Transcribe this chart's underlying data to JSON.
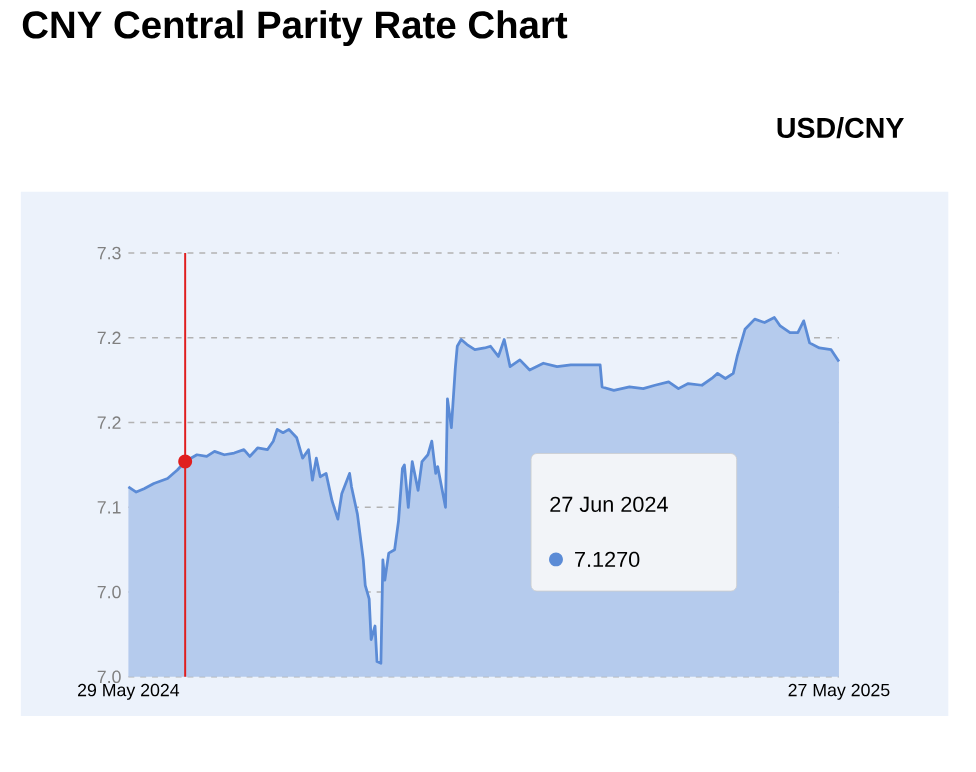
{
  "chart_data": {
    "type": "area",
    "title": "CNY Central Parity Rate Chart",
    "subtitle": "USD/CNY",
    "x": [
      "2024-05-29",
      "2024-06-02",
      "2024-06-06",
      "2024-06-11",
      "2024-06-18",
      "2024-06-23",
      "2024-06-27",
      "2024-07-03",
      "2024-07-08",
      "2024-07-12",
      "2024-07-17",
      "2024-07-22",
      "2024-07-27",
      "2024-07-30",
      "2024-08-03",
      "2024-08-08",
      "2024-08-11",
      "2024-08-13",
      "2024-08-16",
      "2024-08-19",
      "2024-08-23",
      "2024-08-26",
      "2024-08-29",
      "2024-08-31",
      "2024-09-02",
      "2024-09-04",
      "2024-09-07",
      "2024-09-10",
      "2024-09-13",
      "2024-09-15",
      "2024-09-19",
      "2024-09-20",
      "2024-09-23",
      "2024-09-26",
      "2024-09-27",
      "2024-09-29",
      "2024-09-30",
      "2024-10-02",
      "2024-10-03",
      "2024-10-05",
      "2024-10-06",
      "2024-10-07",
      "2024-10-09",
      "2024-10-12",
      "2024-10-14",
      "2024-10-16",
      "2024-10-17",
      "2024-10-19",
      "2024-10-21",
      "2024-10-24",
      "2024-10-26",
      "2024-10-29",
      "2024-10-31",
      "2024-11-02",
      "2024-11-03",
      "2024-11-07",
      "2024-11-08",
      "2024-11-10",
      "2024-11-12",
      "2024-11-13",
      "2024-11-15",
      "2024-11-18",
      "2024-11-22",
      "2024-11-27",
      "2024-11-30",
      "2024-12-04",
      "2024-12-07",
      "2024-12-10",
      "2024-12-15",
      "2024-12-20",
      "2024-12-27",
      "2025-01-03",
      "2025-01-10",
      "2025-01-16",
      "2025-01-25",
      "2025-01-26",
      "2025-02-01",
      "2025-02-09",
      "2025-02-16",
      "2025-02-22",
      "2025-03-01",
      "2025-03-06",
      "2025-03-11",
      "2025-03-18",
      "2025-03-23",
      "2025-03-26",
      "2025-03-30",
      "2025-04-03",
      "2025-04-05",
      "2025-04-09",
      "2025-04-14",
      "2025-04-19",
      "2025-04-24",
      "2025-04-27",
      "2025-05-02",
      "2025-05-06",
      "2025-05-09",
      "2025-05-12",
      "2025-05-17",
      "2025-05-23",
      "2025-05-27"
    ],
    "series": [
      {
        "color": "#5b8bd6",
        "values": [
          7.112,
          7.109,
          7.111,
          7.114,
          7.117,
          7.122,
          7.127,
          7.131,
          7.13,
          7.133,
          7.131,
          7.132,
          7.134,
          7.13,
          7.135,
          7.134,
          7.139,
          7.146,
          7.144,
          7.146,
          7.141,
          7.129,
          7.134,
          7.116,
          7.129,
          7.118,
          7.12,
          7.104,
          7.093,
          7.108,
          7.12,
          7.112,
          7.096,
          7.069,
          7.054,
          7.046,
          7.022,
          7.03,
          7.009,
          7.008,
          7.069,
          7.057,
          7.073,
          7.075,
          7.092,
          7.123,
          7.125,
          7.1,
          7.127,
          7.11,
          7.127,
          7.131,
          7.139,
          7.12,
          7.124,
          7.1,
          7.164,
          7.147,
          7.182,
          7.195,
          7.199,
          7.196,
          7.193,
          7.194,
          7.195,
          7.189,
          7.199,
          7.183,
          7.187,
          7.181,
          7.185,
          7.183,
          7.184,
          7.184,
          7.184,
          7.171,
          7.169,
          7.171,
          7.17,
          7.172,
          7.174,
          7.17,
          7.173,
          7.172,
          7.176,
          7.179,
          7.176,
          7.179,
          7.189,
          7.205,
          7.211,
          7.209,
          7.212,
          7.207,
          7.203,
          7.203,
          7.21,
          7.197,
          7.194,
          7.193,
          7.186
        ]
      }
    ],
    "xlim": [
      "2024-05-29",
      "2025-05-27"
    ],
    "xticks": [
      {
        "value": "2024-05-29",
        "label": "29 May 2024"
      },
      {
        "value": "2025-05-27",
        "label": "27 May 2025"
      }
    ],
    "ylim": [
      7.0,
      7.25
    ],
    "yticks": [
      {
        "value": 7.0,
        "label": "7.0"
      },
      {
        "value": 7.05,
        "label": "7.0"
      },
      {
        "value": 7.1,
        "label": "7.1"
      },
      {
        "value": 7.15,
        "label": "7.2"
      },
      {
        "value": 7.2,
        "label": "7.2"
      },
      {
        "value": 7.25,
        "label": "7.3"
      }
    ],
    "grid": "y",
    "marker": "none",
    "line_style": "solid",
    "ref_lines": [
      {
        "axis": "x",
        "value": "2024-06-27",
        "color": "#e01e1e",
        "line_style": "solid"
      }
    ],
    "annotations": [
      "27 Jun 2024",
      "7.1270"
    ]
  }
}
